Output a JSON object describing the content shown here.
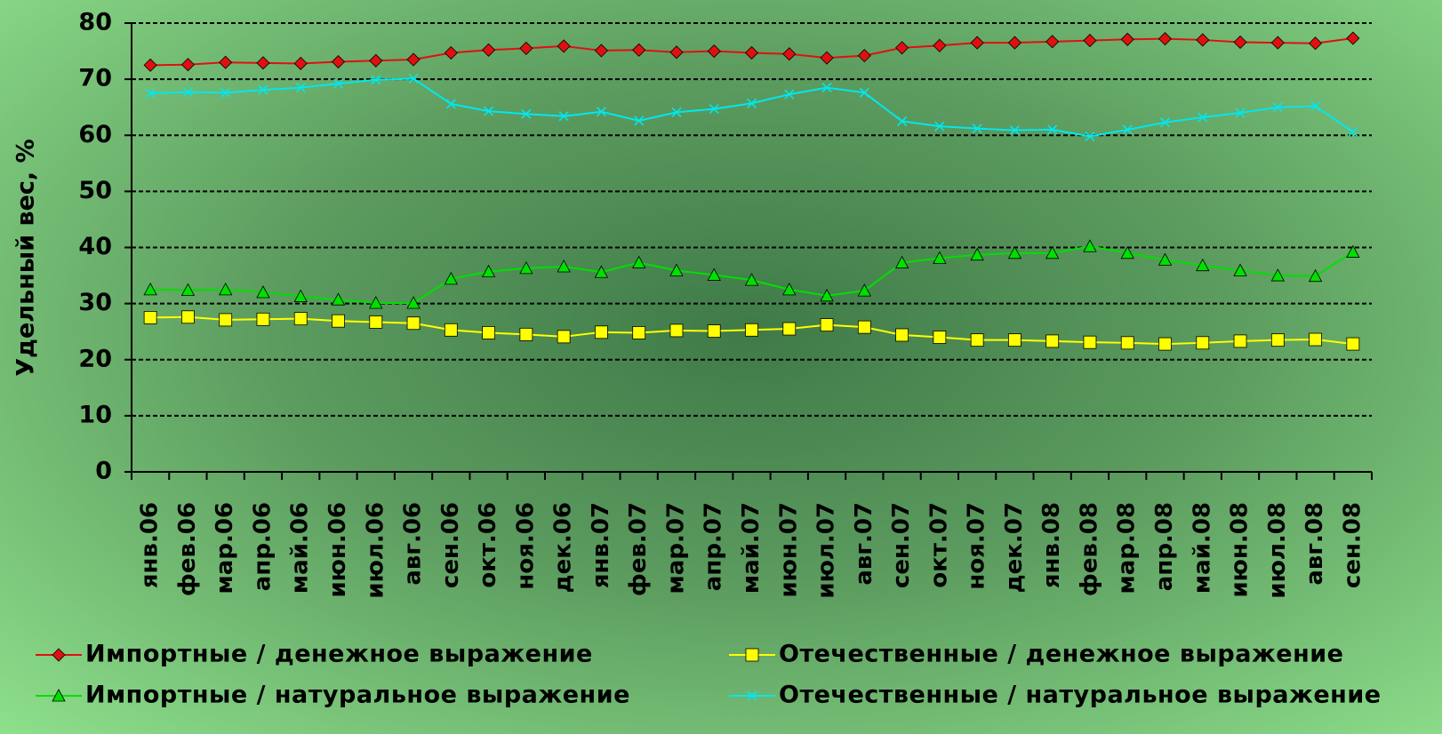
{
  "chart_data": {
    "type": "line",
    "y_label": "Удельный вес, %",
    "categories": [
      "янв.06",
      "фев.06",
      "мар.06",
      "апр.06",
      "май.06",
      "июн.06",
      "июл.06",
      "авг.06",
      "сен.06",
      "окт.06",
      "ноя.06",
      "дек.06",
      "янв.07",
      "фев.07",
      "мар.07",
      "апр.07",
      "май.07",
      "июн.07",
      "июл.07",
      "авг.07",
      "сен.07",
      "окт.07",
      "ноя.07",
      "дек.07",
      "янв.08",
      "фев.08",
      "мар.08",
      "апр.08",
      "май.08",
      "июн.08",
      "июл.08",
      "авг.08",
      "сен.08"
    ],
    "series": [
      {
        "name": "Импортные / денежное выражение",
        "color": "#e01010",
        "marker": "diamond",
        "values": [
          72.5,
          72.6,
          73,
          72.9,
          72.8,
          73.1,
          73.3,
          73.5,
          74.7,
          75.2,
          75.5,
          75.9,
          75.1,
          75.2,
          74.8,
          75,
          74.7,
          74.5,
          73.8,
          74.2,
          75.6,
          76,
          76.5,
          76.5,
          76.7,
          76.9,
          77.1,
          77.2,
          77,
          76.6,
          76.5,
          76.4,
          77.3
        ]
      },
      {
        "name": "Отечественные / денежное выражение",
        "color": "#ffff00",
        "marker": "square",
        "values": [
          27.5,
          27.6,
          27.1,
          27.2,
          27.3,
          26.9,
          26.7,
          26.5,
          25.3,
          24.8,
          24.5,
          24.1,
          24.9,
          24.8,
          25.2,
          25.1,
          25.3,
          25.5,
          26.2,
          25.8,
          24.4,
          24,
          23.5,
          23.5,
          23.3,
          23.1,
          23,
          22.8,
          23,
          23.3,
          23.5,
          23.6,
          22.8
        ]
      },
      {
        "name": "Импортные / натуральное выражение",
        "color": "#00e000",
        "marker": "triangle",
        "values": [
          32.5,
          32.4,
          32.5,
          32,
          31.3,
          30.7,
          30.1,
          30.1,
          34.4,
          35.7,
          36.3,
          36.6,
          35.6,
          37.3,
          35.9,
          35.1,
          34.2,
          32.5,
          31.4,
          32.3,
          37.3,
          38.1,
          38.7,
          39,
          39,
          40.2,
          39,
          37.8,
          36.8,
          35.9,
          35,
          34.9,
          39.2
        ]
      },
      {
        "name": "Отечественные / натуральное выражение",
        "color": "#00e8f0",
        "marker": "x",
        "values": [
          67.5,
          67.7,
          67.6,
          68.1,
          68.5,
          69.2,
          69.9,
          70.1,
          65.6,
          64.3,
          63.8,
          63.4,
          64.2,
          62.6,
          64.1,
          64.7,
          65.7,
          67.3,
          68.5,
          67.6,
          62.5,
          61.6,
          61.2,
          60.9,
          61,
          59.8,
          61,
          62.3,
          63.2,
          64,
          65,
          65.2,
          60.6
        ]
      }
    ],
    "ylim": [
      0,
      80
    ],
    "yticks": [
      0,
      10,
      20,
      30,
      40,
      50,
      60,
      70,
      80
    ],
    "grid": true,
    "legend": "bottom"
  }
}
